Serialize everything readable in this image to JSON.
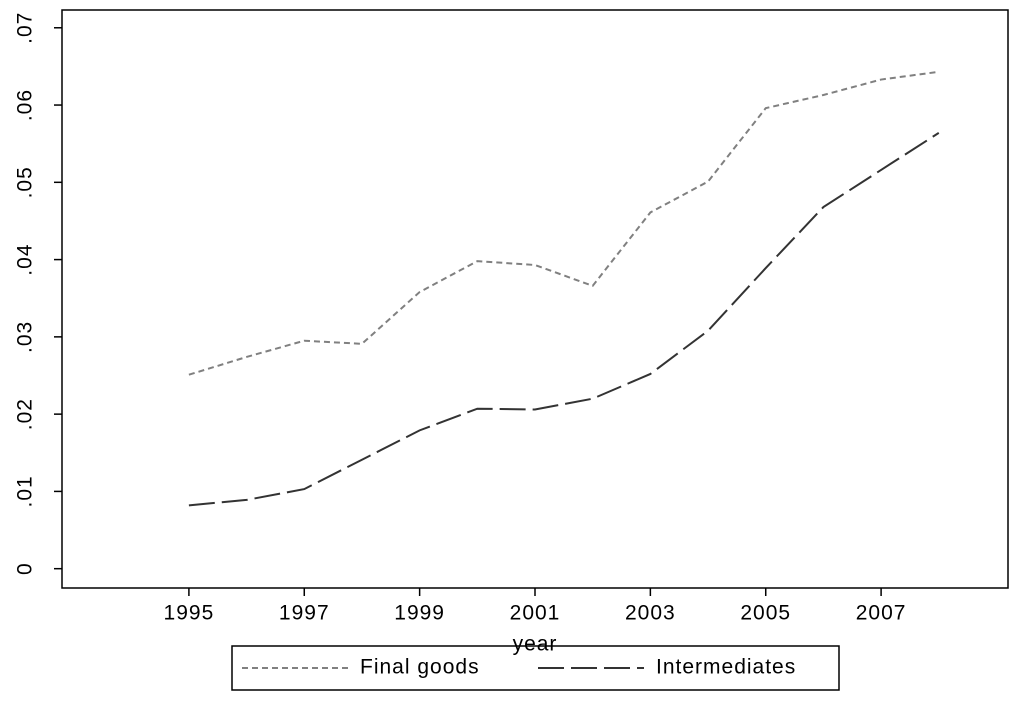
{
  "chart_data": {
    "type": "line",
    "x_label": "year",
    "x": [
      1995,
      1996,
      1997,
      1998,
      1999,
      2000,
      2001,
      2002,
      2003,
      2004,
      2005,
      2006,
      2007,
      2008
    ],
    "series": [
      {
        "name": "Final goods",
        "color": "#808080",
        "dash": "short",
        "values": [
          0.0251,
          0.0274,
          0.0295,
          0.0291,
          0.0358,
          0.0398,
          0.0393,
          0.0366,
          0.0461,
          0.0501,
          0.0596,
          0.0613,
          0.0633,
          0.0643
        ]
      },
      {
        "name": "Intermediates",
        "color": "#333333",
        "dash": "long",
        "values": [
          0.0082,
          0.0089,
          0.0103,
          0.0141,
          0.0179,
          0.0207,
          0.0206,
          0.022,
          0.0252,
          0.0308,
          0.0389,
          0.0468,
          0.0516,
          0.0564
        ]
      }
    ],
    "xlim": [
      1992.8,
      2009.2
    ],
    "xticks": [
      1995,
      1997,
      1999,
      2001,
      2003,
      2005,
      2007
    ],
    "ylim": [
      -0.0025,
      0.0723
    ],
    "yticks": [
      0,
      {
        "value": 0.01,
        "label": ".01"
      },
      {
        "value": 0.02,
        "label": ".02"
      },
      {
        "value": 0.03,
        "label": ".03"
      },
      {
        "value": 0.04,
        "label": ".04"
      },
      {
        "value": 0.05,
        "label": ".05"
      },
      {
        "value": 0.06,
        "label": ".06"
      },
      {
        "value": 0.07,
        "label": ".07"
      }
    ],
    "legend": "bottom"
  }
}
